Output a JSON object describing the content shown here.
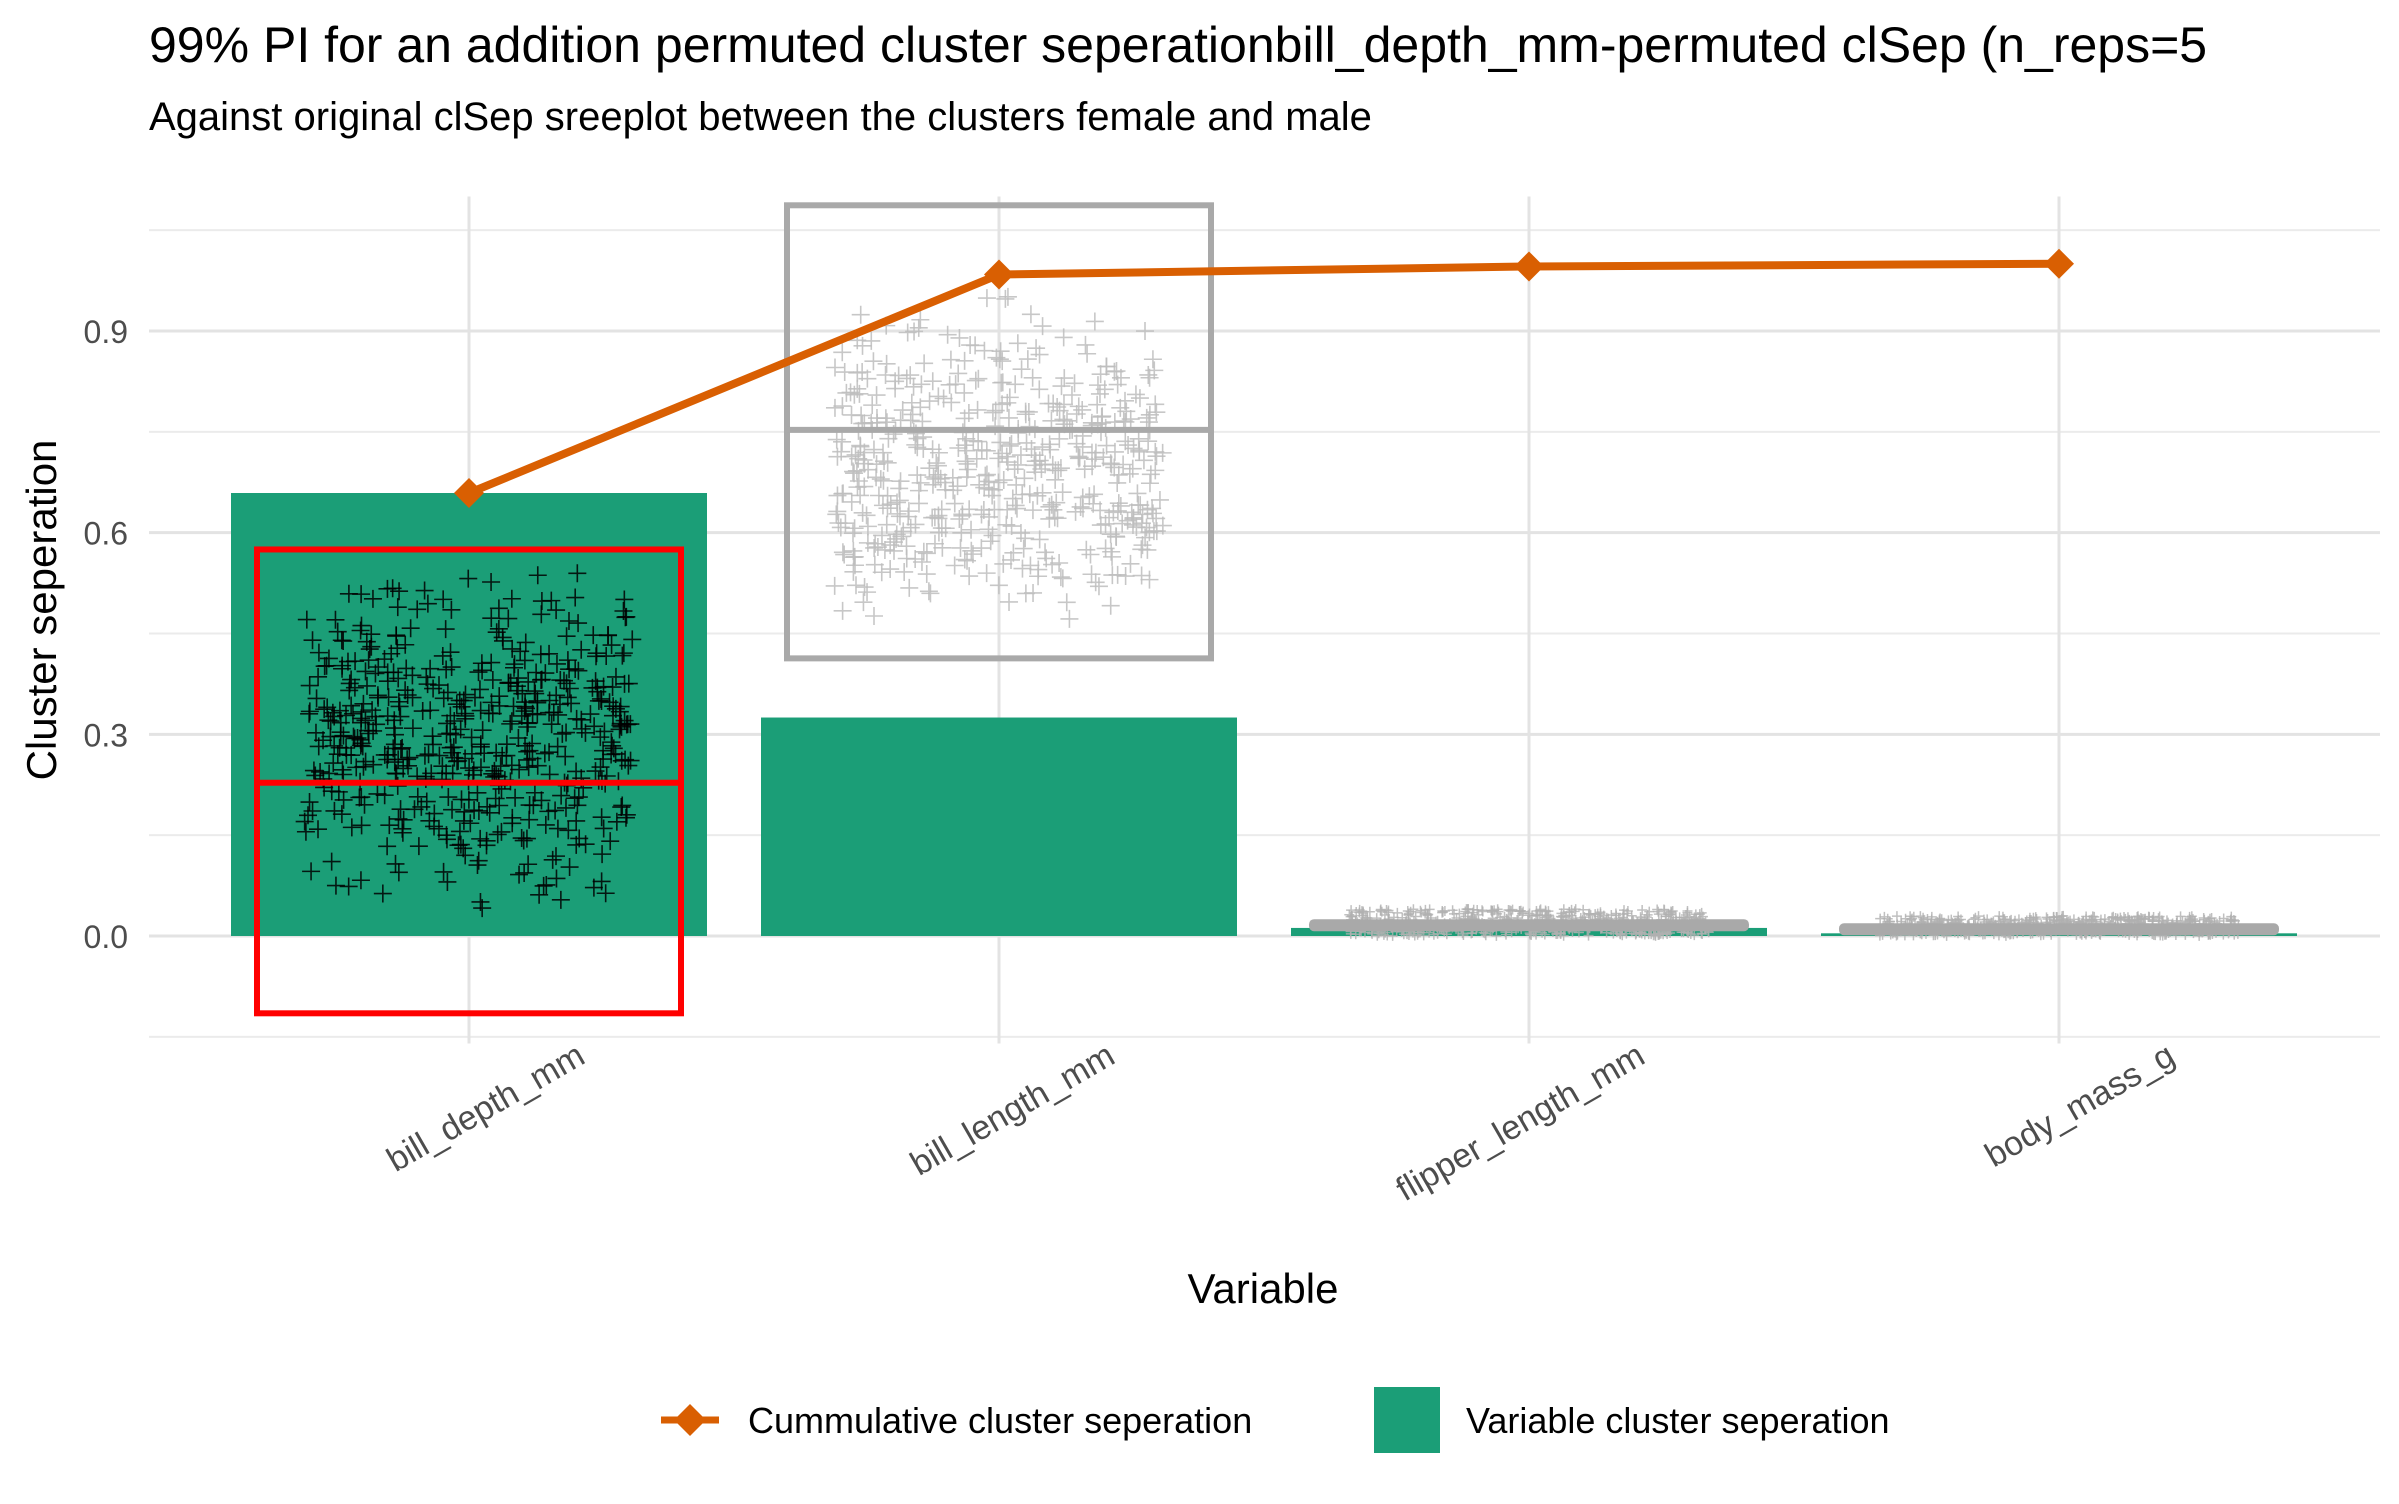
{
  "chart_data": {
    "type": "bar",
    "title": "99% PI for an addition permuted cluster seperationbill_depth_mm-permuted clSep (n_reps=5",
    "subtitle": "Against original clSep sreeplot between the clusters female and male",
    "xlabel": "Variable",
    "ylabel": "Cluster seperation",
    "ylim": [
      -0.16,
      1.1
    ],
    "yticks": [
      0.0,
      0.3,
      0.6,
      0.9
    ],
    "ytick_labels": [
      "0.0",
      "0.3",
      "0.6",
      "0.9"
    ],
    "grid": true,
    "legend_position": "bottom",
    "categories": [
      "bill_depth_mm",
      "bill_length_mm",
      "flipper_length_mm",
      "body_mass_g"
    ],
    "series": [
      {
        "name": "Variable cluster seperation",
        "kind": "bar",
        "color": "#1b9e77",
        "values": [
          0.659,
          0.325,
          0.012,
          0.004
        ]
      },
      {
        "name": "Cummulative cluster seperation",
        "kind": "line",
        "color": "#d95f02",
        "marker": "diamond",
        "values": [
          0.659,
          0.984,
          0.996,
          1.0
        ]
      }
    ],
    "permutation_boxes": [
      {
        "category": "bill_depth_mm",
        "color": "#ff0000",
        "lower": -0.115,
        "median": 0.228,
        "upper": 0.575,
        "points_min": 0.0,
        "points_max": 0.6,
        "point_color": "#000000"
      },
      {
        "category": "bill_length_mm",
        "color": "#a9a9a9",
        "lower": 0.413,
        "median": 0.753,
        "upper": 1.087,
        "points_min": 0.39,
        "points_max": 0.99,
        "point_color": "#bdbdbd"
      },
      {
        "category": "flipper_length_mm",
        "color": "#a9a9a9",
        "lower": 0.013,
        "median": 0.019,
        "upper": 0.025,
        "points_min": 0.0,
        "points_max": 0.04,
        "point_color": "#b0b0b0"
      },
      {
        "category": "body_mass_g",
        "color": "#a9a9a9",
        "lower": 0.009,
        "median": 0.014,
        "upper": 0.019,
        "points_min": 0.0,
        "points_max": 0.03,
        "point_color": "#b0b0b0"
      }
    ]
  }
}
